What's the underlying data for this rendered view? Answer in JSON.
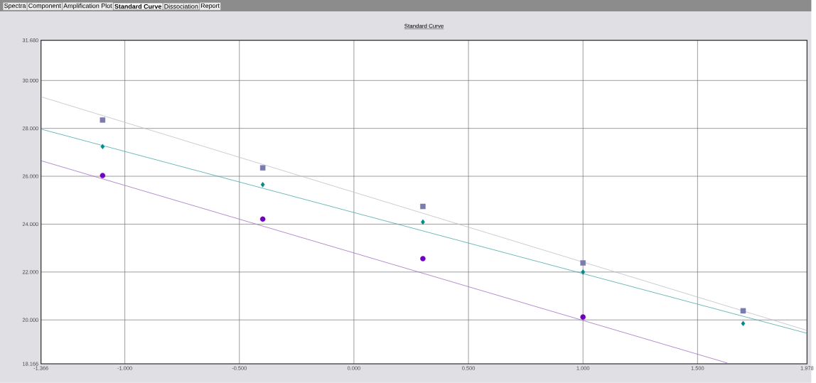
{
  "chart_data": {
    "type": "scatter",
    "title": "Standard Curve",
    "annotations": [
      "Spectra",
      "Component",
      "Amplification Plot",
      "Standard Curve",
      "Dissociation",
      "Report"
    ],
    "series": [
      {
        "marker": "square",
        "color": "#7b7bb0",
        "x": [
          -1.097,
          -0.398,
          0.301,
          1.0,
          1.699
        ],
        "values": [
          28.35,
          26.35,
          24.74,
          22.38,
          20.38
        ]
      },
      {
        "marker": "diamond",
        "color": "#008b8b",
        "x": [
          -1.097,
          -0.398,
          0.301,
          1.0,
          1.699
        ],
        "values": [
          27.24,
          25.65,
          24.09,
          22.0,
          19.85
        ]
      },
      {
        "marker": "circle",
        "color": "#7000c0",
        "x": [
          -1.097,
          -0.398,
          0.301,
          1.0
        ],
        "values": [
          26.03,
          24.21,
          22.56,
          20.12
        ]
      },
      {
        "type": "line",
        "color": "#bdbdca",
        "x": [
          -1.366,
          1.978
        ],
        "values": [
          29.32,
          19.56
        ]
      },
      {
        "type": "line",
        "color": "#4aa8a8",
        "x": [
          -1.366,
          1.978
        ],
        "values": [
          27.97,
          19.44
        ]
      },
      {
        "type": "line",
        "color": "#a070c0",
        "x": [
          -1.366,
          1.63
        ],
        "values": [
          26.65,
          18.2
        ]
      }
    ],
    "xlim": [
      -1.366,
      1.978
    ],
    "xticks": [
      {
        "value": -1.366,
        "label": "-1.366"
      },
      {
        "value": -1.0,
        "label": "-1.000"
      },
      {
        "value": -0.5,
        "label": "-0.500"
      },
      {
        "value": 0,
        "label": "0.000"
      },
      {
        "value": 0.5,
        "label": "0.500"
      },
      {
        "value": 1.0,
        "label": "1.000"
      },
      {
        "value": 1.5,
        "label": "1.500"
      },
      {
        "value": 1.978,
        "label": "1.978"
      }
    ],
    "ylim": [
      18.166,
      31.68
    ],
    "yticks": [
      {
        "value": 18.166,
        "label": "18.166"
      },
      {
        "value": 20,
        "label": "20.000"
      },
      {
        "value": 22,
        "label": "22.000"
      },
      {
        "value": 24,
        "label": "24.000"
      },
      {
        "value": 26,
        "label": "26.000"
      },
      {
        "value": 28,
        "label": "28.000"
      },
      {
        "value": 30,
        "label": "30.000"
      },
      {
        "value": 31.68,
        "label": "31.680"
      }
    ],
    "grid": true
  }
}
